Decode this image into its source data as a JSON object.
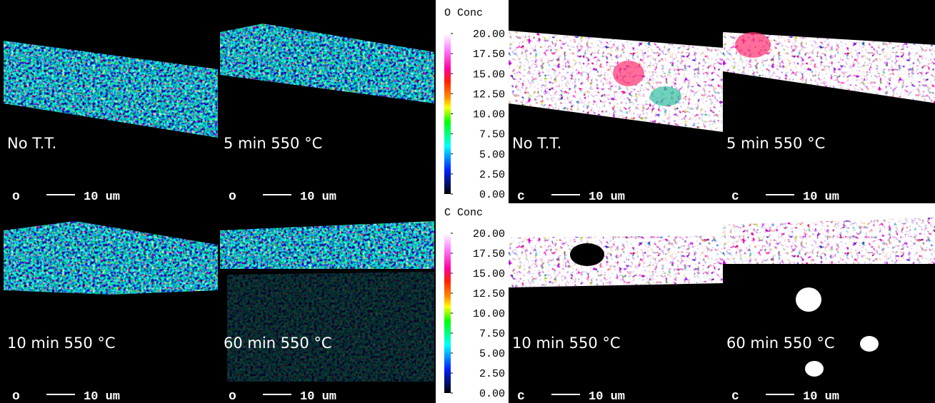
{
  "panels": [
    {
      "label": "No T.T.",
      "element": "o",
      "scale": "10 um"
    },
    {
      "label": "5 min 550 °C",
      "element": "o",
      "scale": "10 um"
    },
    {
      "label": "No T.T.",
      "element": "c",
      "scale": "10 um"
    },
    {
      "label": "5 min 550 °C",
      "element": "c",
      "scale": "10 um"
    },
    {
      "label": "10 min 550 °C",
      "element": "o",
      "scale": "10 um"
    },
    {
      "label": "60 min 550 °C",
      "element": "o",
      "scale": "10 um"
    },
    {
      "label": "10 min 550 °C",
      "element": "c",
      "scale": "10 um"
    },
    {
      "label": "60 min 550 °C",
      "element": "c",
      "scale": "10 um"
    }
  ],
  "colorbars": [
    {
      "title": "O Conc",
      "ticks": [
        {
          "value": 20,
          "label": "20.00"
        },
        {
          "value": 17.5,
          "label": "17.50"
        },
        {
          "value": 15,
          "label": "15.00"
        },
        {
          "value": 12.5,
          "label": "12.50"
        },
        {
          "value": 10,
          "label": "10.00"
        },
        {
          "value": 7.5,
          "label": "7.50"
        },
        {
          "value": 5,
          "label": "5.00"
        },
        {
          "value": 2.5,
          "label": "2.50"
        },
        {
          "value": 0,
          "label": "0.00"
        }
      ]
    },
    {
      "title": "C Conc",
      "ticks": [
        {
          "value": 20,
          "label": "20.00"
        },
        {
          "value": 17.5,
          "label": "17.50"
        },
        {
          "value": 15,
          "label": "15.00"
        },
        {
          "value": 12.5,
          "label": "12.50"
        },
        {
          "value": 10,
          "label": "10.00"
        },
        {
          "value": 7.5,
          "label": "7.50"
        },
        {
          "value": 5,
          "label": "5.00"
        },
        {
          "value": 2.5,
          "label": "2.50"
        },
        {
          "value": 0,
          "label": "0.00"
        }
      ]
    }
  ]
}
